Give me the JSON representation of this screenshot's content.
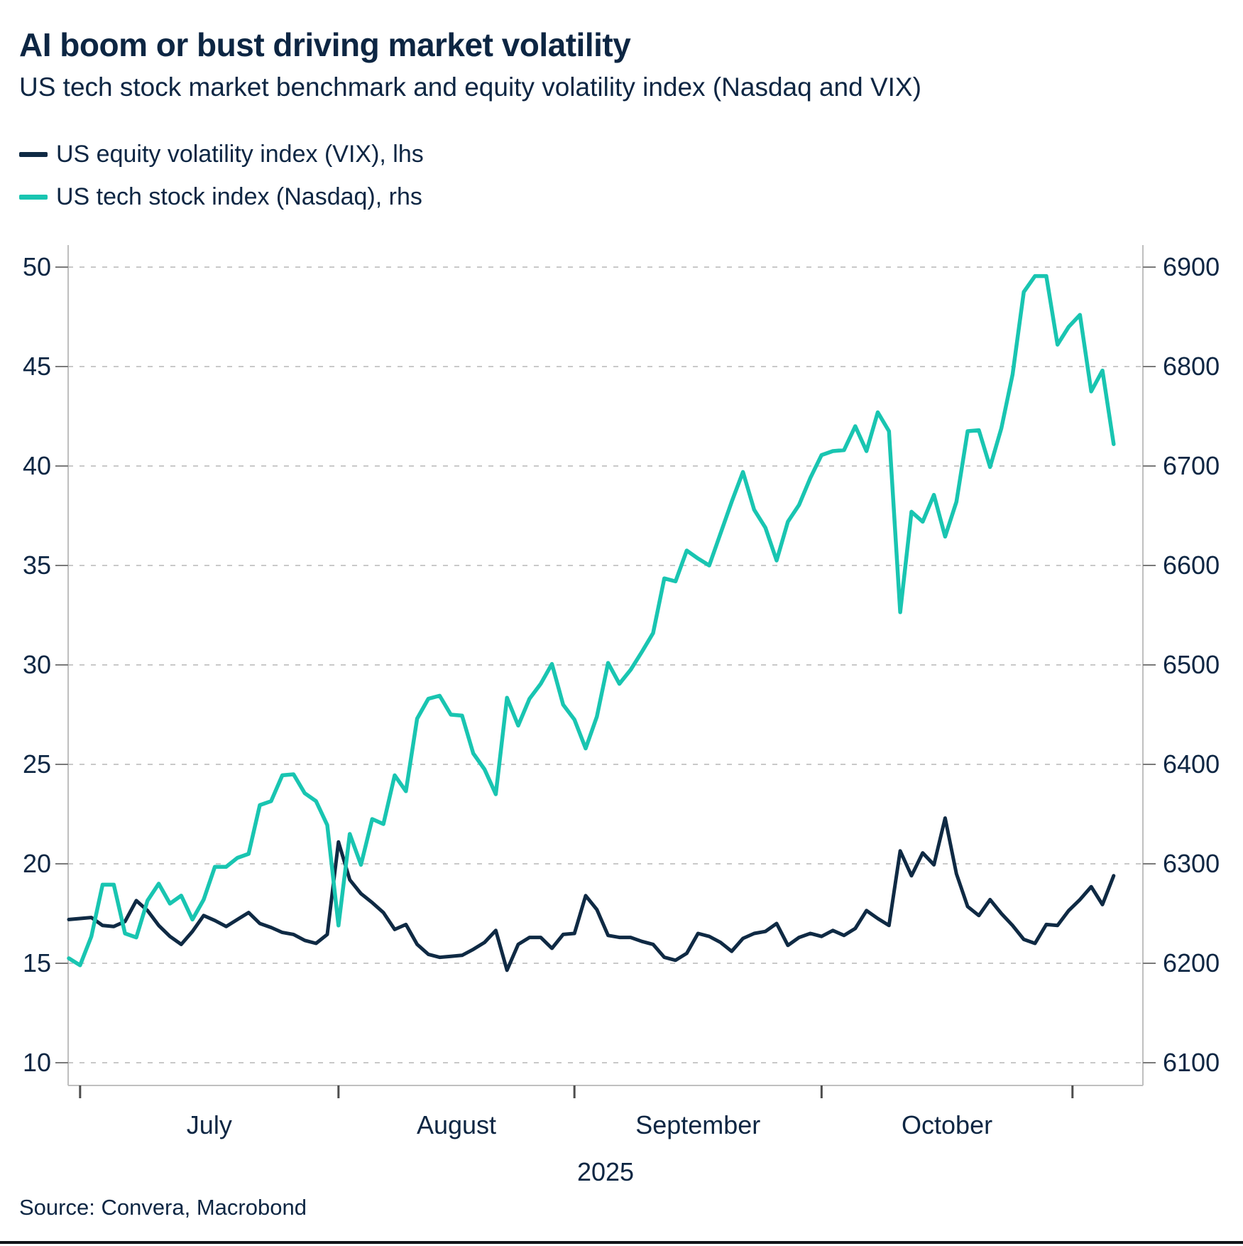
{
  "title": "AI boom or bust driving market volatility",
  "subtitle": "US tech stock market benchmark and equity volatility index (Nasdaq and VIX)",
  "source": "Source: Convera, Macrobond",
  "colors": {
    "text": "#0d2643",
    "navy_line": "#0f2a44",
    "teal_line": "#19c5b1",
    "gridline": "#c9c9c9",
    "axis_line": "#bfbfbf",
    "axis_tick": "#7a7a7a",
    "bottom_tick": "#4d4d4d"
  },
  "legend": [
    {
      "label": "US equity volatility index (VIX), lhs",
      "color_key": "navy_line"
    },
    {
      "label": "US tech stock index (Nasdaq), rhs",
      "color_key": "teal_line"
    }
  ],
  "chart_data": {
    "type": "line",
    "title": "AI boom or bust driving market volatility",
    "subtitle": "US tech stock market benchmark and equity volatility index (Nasdaq and VIX)",
    "grid": "dashed-horizontal",
    "legend_position": "top-left",
    "left_axis": {
      "label": "US equity volatility index (VIX), lhs",
      "range": [
        10,
        50
      ],
      "ticks": [
        10,
        15,
        20,
        25,
        30,
        35,
        40,
        45,
        50
      ]
    },
    "right_axis": {
      "label": "US tech stock index (Nasdaq), rhs",
      "range": [
        6100,
        6900
      ],
      "ticks": [
        6100,
        6200,
        6300,
        6400,
        6500,
        6600,
        6700,
        6800,
        6900
      ]
    },
    "x_axis": {
      "year_label": "2025",
      "month_boundary_dates": [
        "2025-07-01",
        "2025-08-01",
        "2025-09-01",
        "2025-10-01",
        "2025-11-01"
      ],
      "month_labels": [
        "July",
        "August",
        "September",
        "October"
      ]
    },
    "dates": [
      "2025-06-30",
      "2025-07-01",
      "2025-07-02",
      "2025-07-03",
      "2025-07-04",
      "2025-07-07",
      "2025-07-08",
      "2025-07-09",
      "2025-07-10",
      "2025-07-11",
      "2025-07-14",
      "2025-07-15",
      "2025-07-16",
      "2025-07-17",
      "2025-07-18",
      "2025-07-21",
      "2025-07-22",
      "2025-07-23",
      "2025-07-24",
      "2025-07-25",
      "2025-07-28",
      "2025-07-29",
      "2025-07-30",
      "2025-07-31",
      "2025-08-01",
      "2025-08-04",
      "2025-08-05",
      "2025-08-06",
      "2025-08-07",
      "2025-08-08",
      "2025-08-11",
      "2025-08-12",
      "2025-08-13",
      "2025-08-14",
      "2025-08-15",
      "2025-08-18",
      "2025-08-19",
      "2025-08-20",
      "2025-08-21",
      "2025-08-22",
      "2025-08-25",
      "2025-08-26",
      "2025-08-27",
      "2025-08-28",
      "2025-08-29",
      "2025-09-01",
      "2025-09-02",
      "2025-09-03",
      "2025-09-04",
      "2025-09-05",
      "2025-09-08",
      "2025-09-09",
      "2025-09-10",
      "2025-09-11",
      "2025-09-12",
      "2025-09-15",
      "2025-09-16",
      "2025-09-17",
      "2025-09-18",
      "2025-09-19",
      "2025-09-22",
      "2025-09-23",
      "2025-09-24",
      "2025-09-25",
      "2025-09-26",
      "2025-09-29",
      "2025-09-30",
      "2025-10-01",
      "2025-10-02",
      "2025-10-03",
      "2025-10-06",
      "2025-10-07",
      "2025-10-08",
      "2025-10-09",
      "2025-10-10",
      "2025-10-13",
      "2025-10-14",
      "2025-10-15",
      "2025-10-16",
      "2025-10-17",
      "2025-10-20",
      "2025-10-21",
      "2025-10-22",
      "2025-10-23",
      "2025-10-24",
      "2025-10-27",
      "2025-10-28",
      "2025-10-29",
      "2025-10-30",
      "2025-10-31",
      "2025-11-03",
      "2025-11-04",
      "2025-11-05",
      "2025-11-06"
    ],
    "series": [
      {
        "name": "US equity volatility index (VIX), lhs",
        "axis": "left",
        "color_key": "navy_line",
        "values": [
          17.2,
          17.25,
          17.3,
          16.9,
          16.85,
          17.1,
          18.15,
          17.65,
          16.9,
          16.35,
          15.95,
          16.6,
          17.4,
          17.15,
          16.85,
          17.2,
          17.55,
          17.0,
          16.8,
          16.55,
          16.45,
          16.15,
          16.0,
          16.45,
          21.1,
          19.2,
          18.5,
          18.05,
          17.55,
          16.7,
          16.95,
          15.95,
          15.45,
          15.3,
          15.35,
          15.4,
          15.7,
          16.05,
          16.65,
          14.65,
          15.95,
          16.3,
          16.3,
          15.75,
          16.45,
          16.5,
          18.4,
          17.7,
          16.4,
          16.3,
          16.3,
          16.1,
          15.95,
          15.3,
          15.15,
          15.5,
          16.5,
          16.35,
          16.05,
          15.6,
          16.25,
          16.5,
          16.6,
          17.0,
          15.9,
          16.3,
          16.5,
          16.35,
          16.65,
          16.4,
          16.75,
          17.65,
          17.25,
          16.9,
          20.65,
          19.4,
          20.55,
          19.95,
          22.3,
          19.5,
          17.85,
          17.4,
          18.2,
          17.5,
          16.9,
          16.2,
          16.0,
          16.95,
          16.9,
          17.65,
          18.2,
          18.85,
          17.95,
          19.4
        ]
      },
      {
        "name": "US tech stock index (Nasdaq), rhs",
        "axis": "right",
        "color_key": "teal_line",
        "values": [
          6205,
          6198,
          6227,
          6279,
          6279,
          6230,
          6226,
          6263,
          6280,
          6260,
          6268,
          6244,
          6264,
          6297,
          6297,
          6306,
          6310,
          6359,
          6363,
          6389,
          6390,
          6371,
          6363,
          6339,
          6238,
          6330,
          6299,
          6345,
          6340,
          6389,
          6373,
          6446,
          6466,
          6469,
          6450,
          6449,
          6411,
          6395,
          6370,
          6467,
          6439,
          6466,
          6481,
          6501,
          6460,
          6445,
          6416,
          6448,
          6502,
          6481,
          6495,
          6513,
          6532,
          6587,
          6584,
          6615,
          6607,
          6600,
          6632,
          6664,
          6694,
          6656,
          6638,
          6605,
          6644,
          6661,
          6688,
          6711,
          6715,
          6716,
          6740,
          6715,
          6754,
          6735,
          6553,
          6654,
          6644,
          6671,
          6629,
          6664,
          6735,
          6736,
          6699,
          6738,
          6792,
          6875,
          6891,
          6891,
          6822,
          6840,
          6852,
          6775,
          6796,
          6722
        ]
      }
    ]
  }
}
